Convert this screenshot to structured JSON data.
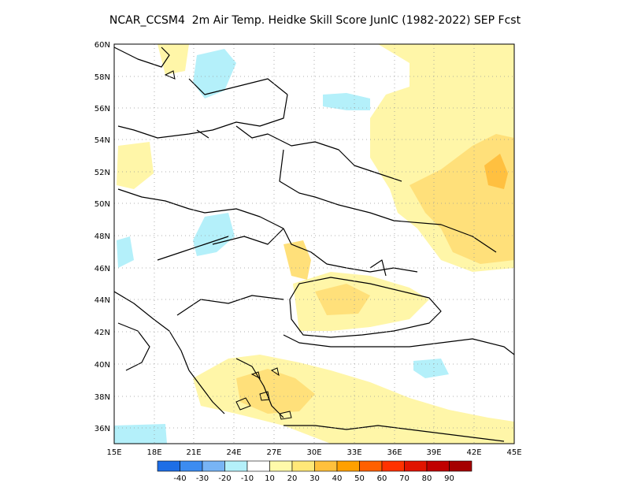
{
  "title": "NCAR_CCSM4  2m Air Temp. Heidke Skill Score JunIC (1982-2022) SEP Fcst",
  "lat_labels": [
    "60N",
    "58N",
    "56N",
    "54N",
    "52N",
    "50N",
    "48N",
    "46N",
    "44N",
    "42N",
    "40N",
    "38N",
    "36N"
  ],
  "lon_labels": [
    "15E",
    "18E",
    "21E",
    "24E",
    "27E",
    "30E",
    "33E",
    "36E",
    "39E",
    "42E",
    "45E"
  ],
  "colorbar": {
    "colors": [
      "#1e6ee6",
      "#3c8cf0",
      "#78b4f5",
      "#b4f0fa",
      "#ffffff",
      "#fffaaa",
      "#ffe878",
      "#ffc03c",
      "#ffa000",
      "#ff6000",
      "#ff3200",
      "#e11400",
      "#c00000",
      "#a50000"
    ],
    "labels": [
      "-40",
      "-30",
      "-20",
      "-10",
      "10",
      "20",
      "30",
      "40",
      "50",
      "60",
      "70",
      "80",
      "90"
    ]
  },
  "palette": {
    "land_line": "#000000",
    "grid": "#999999",
    "pos_light": "#fff6a8",
    "pos_mid": "#ffe07a",
    "pos_strong": "#ffc040",
    "neg_light": "#b4f0fa"
  }
}
